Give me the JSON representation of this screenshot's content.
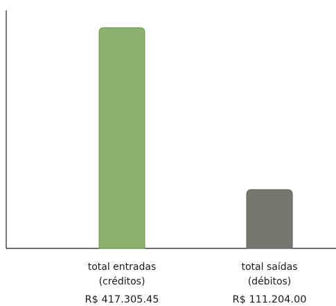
{
  "chart_data": {
    "type": "bar",
    "title": "",
    "xlabel": "",
    "ylabel": "",
    "ylim": [
      0,
      450000
    ],
    "grid": false,
    "legend": "none",
    "categories": [
      {
        "line1": "total entradas",
        "line2": "(créditos)",
        "value_label": "R$ 417.305.45"
      },
      {
        "line1": "total saídas",
        "line2": "(débitos)",
        "value_label": "R$ 111.204.00"
      }
    ],
    "values": [
      417305.45,
      111204.0
    ],
    "colors": [
      "#8ab06e",
      "#78776f"
    ],
    "bar_border_colors": [
      "#6f9556",
      "#5e5d56"
    ],
    "axis_color": "#1a1a1a"
  }
}
